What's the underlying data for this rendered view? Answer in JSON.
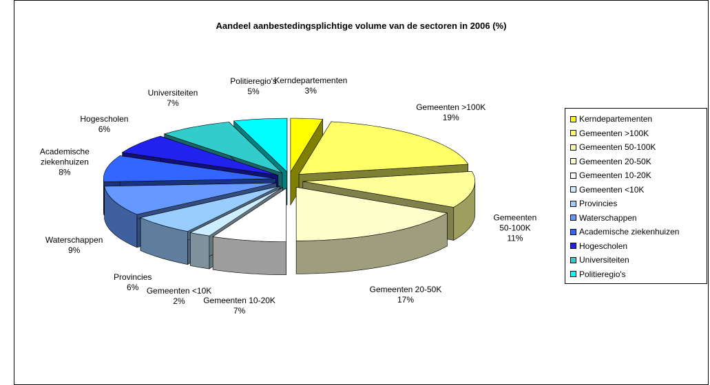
{
  "chart_data": {
    "type": "pie3d",
    "title": "Aandeel aanbestedingsplichtige volume van de sectoren in 2006 (%)",
    "categories": [
      "Kerndepartementen",
      "Gemeenten >100K",
      "Gemeenten 50-100K",
      "Gemeenten 20-50K",
      "Gemeenten 10-20K",
      "Gemeenten <10K",
      "Provincies",
      "Waterschappen",
      "Academische ziekenhuizen",
      "Hogescholen",
      "Universiteiten",
      "Politieregio's"
    ],
    "values": [
      3,
      19,
      11,
      17,
      7,
      2,
      6,
      9,
      8,
      6,
      7,
      5
    ],
    "value_labels": [
      "3%",
      "19%",
      "11%",
      "17%",
      "7%",
      "2%",
      "6%",
      "9%",
      "8%",
      "6%",
      "7%",
      "5%"
    ],
    "colors": [
      "#ffff00",
      "#ffff66",
      "#ffff99",
      "#ffffcc",
      "#ffffff",
      "#ccecff",
      "#99ccff",
      "#6699ff",
      "#3366ff",
      "#2222ee",
      "#33cccc",
      "#00ffff"
    ],
    "legend": "right"
  }
}
